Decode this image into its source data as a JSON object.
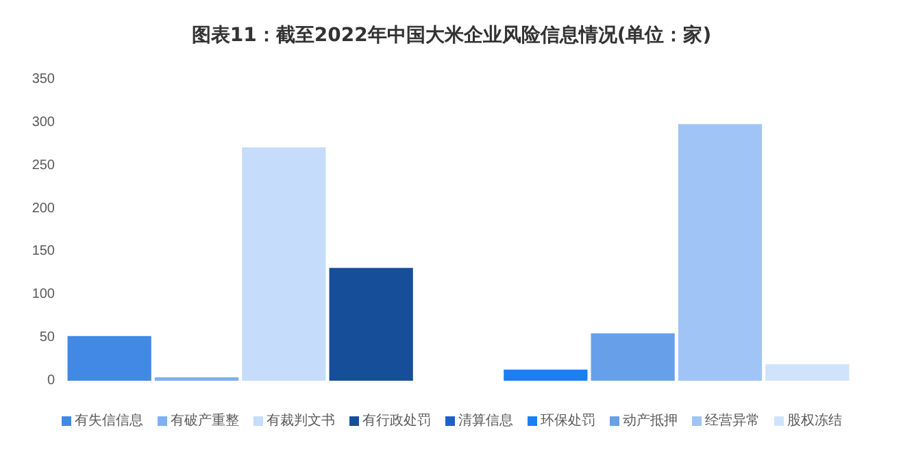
{
  "chart_data": {
    "type": "bar",
    "title": "图表11：截至2022年中国大米企业风险信息情况(单位：家)",
    "categories": [
      "有失信信息",
      "有破产重整",
      "有裁判文书",
      "有行政处罚",
      "清算信息",
      "环保处罚",
      "动产抵押",
      "经营异常",
      "股权冻结"
    ],
    "values": [
      52,
      4,
      271,
      131,
      0,
      13,
      55,
      298,
      19
    ],
    "colors": [
      "#4189e5",
      "#7fb0f0",
      "#c5ddfa",
      "#174e9a",
      "#1f5fc8",
      "#1a7ef5",
      "#67a0e8",
      "#a0c4f5",
      "#cfe3fc"
    ],
    "ylim": [
      0,
      350
    ],
    "yticks": [
      0,
      50,
      100,
      150,
      200,
      250,
      300,
      350
    ],
    "grid": false,
    "tick_labels": "y"
  }
}
